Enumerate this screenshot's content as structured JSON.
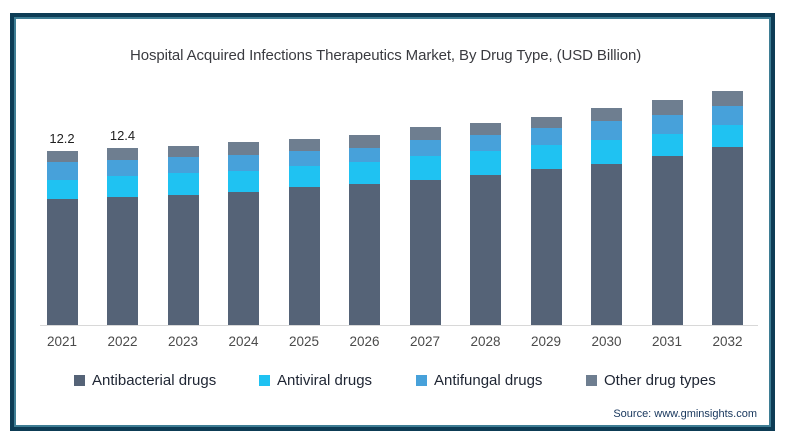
{
  "title": "Hospital Acquired Infections Therapeutics Market, By Drug Type, (USD Billion)",
  "source_note": "Source: www.gminsights.com",
  "colors": {
    "frame_outer": "#0d3c55",
    "frame_inner": "#3e7d94",
    "axis_line": "#d8d8d8",
    "antibacterial": "#556377",
    "antiviral": "#1fc2f2",
    "antifungal": "#47a1da",
    "other": "#6e7e90"
  },
  "chart_data": {
    "type": "bar",
    "stacked": true,
    "title": "Hospital Acquired Infections Therapeutics Market, By Drug Type, (USD Billion)",
    "xlabel": "",
    "ylabel": "USD Billion",
    "ylim": [
      0,
      17
    ],
    "grid": false,
    "y_axis_visible": false,
    "legend_position": "bottom",
    "categories": [
      "2021",
      "2022",
      "2023",
      "2024",
      "2025",
      "2026",
      "2027",
      "2028",
      "2029",
      "2030",
      "2031",
      "2032"
    ],
    "series": [
      {
        "name": "Antibacterial drugs",
        "color": "#556377",
        "values": [
          8.85,
          9.0,
          9.15,
          9.35,
          9.7,
          9.9,
          10.2,
          10.55,
          10.95,
          11.3,
          11.85,
          12.5
        ]
      },
      {
        "name": "Antiviral drugs",
        "color": "#1fc2f2",
        "values": [
          1.35,
          1.5,
          1.55,
          1.5,
          1.5,
          1.55,
          1.65,
          1.65,
          1.65,
          1.7,
          1.55,
          1.55
        ]
      },
      {
        "name": "Antifungal drugs",
        "color": "#47a1da",
        "values": [
          1.25,
          1.15,
          1.1,
          1.15,
          1.05,
          1.0,
          1.1,
          1.1,
          1.2,
          1.35,
          1.35,
          1.35
        ]
      },
      {
        "name": "Other drug types",
        "color": "#6e7e90",
        "values": [
          0.75,
          0.75,
          0.75,
          0.8,
          0.82,
          0.85,
          0.9,
          0.85,
          0.8,
          0.85,
          1.0,
          0.98
        ]
      }
    ],
    "totals": [
      12.2,
      12.4,
      12.55,
      12.8,
      13.07,
      13.3,
      13.85,
      14.15,
      14.6,
      15.2,
      15.75,
      16.38
    ],
    "data_labels": [
      "12.2",
      "12.4",
      "",
      "",
      "",
      "",
      "",
      "",
      "",
      "",
      "",
      ""
    ]
  }
}
